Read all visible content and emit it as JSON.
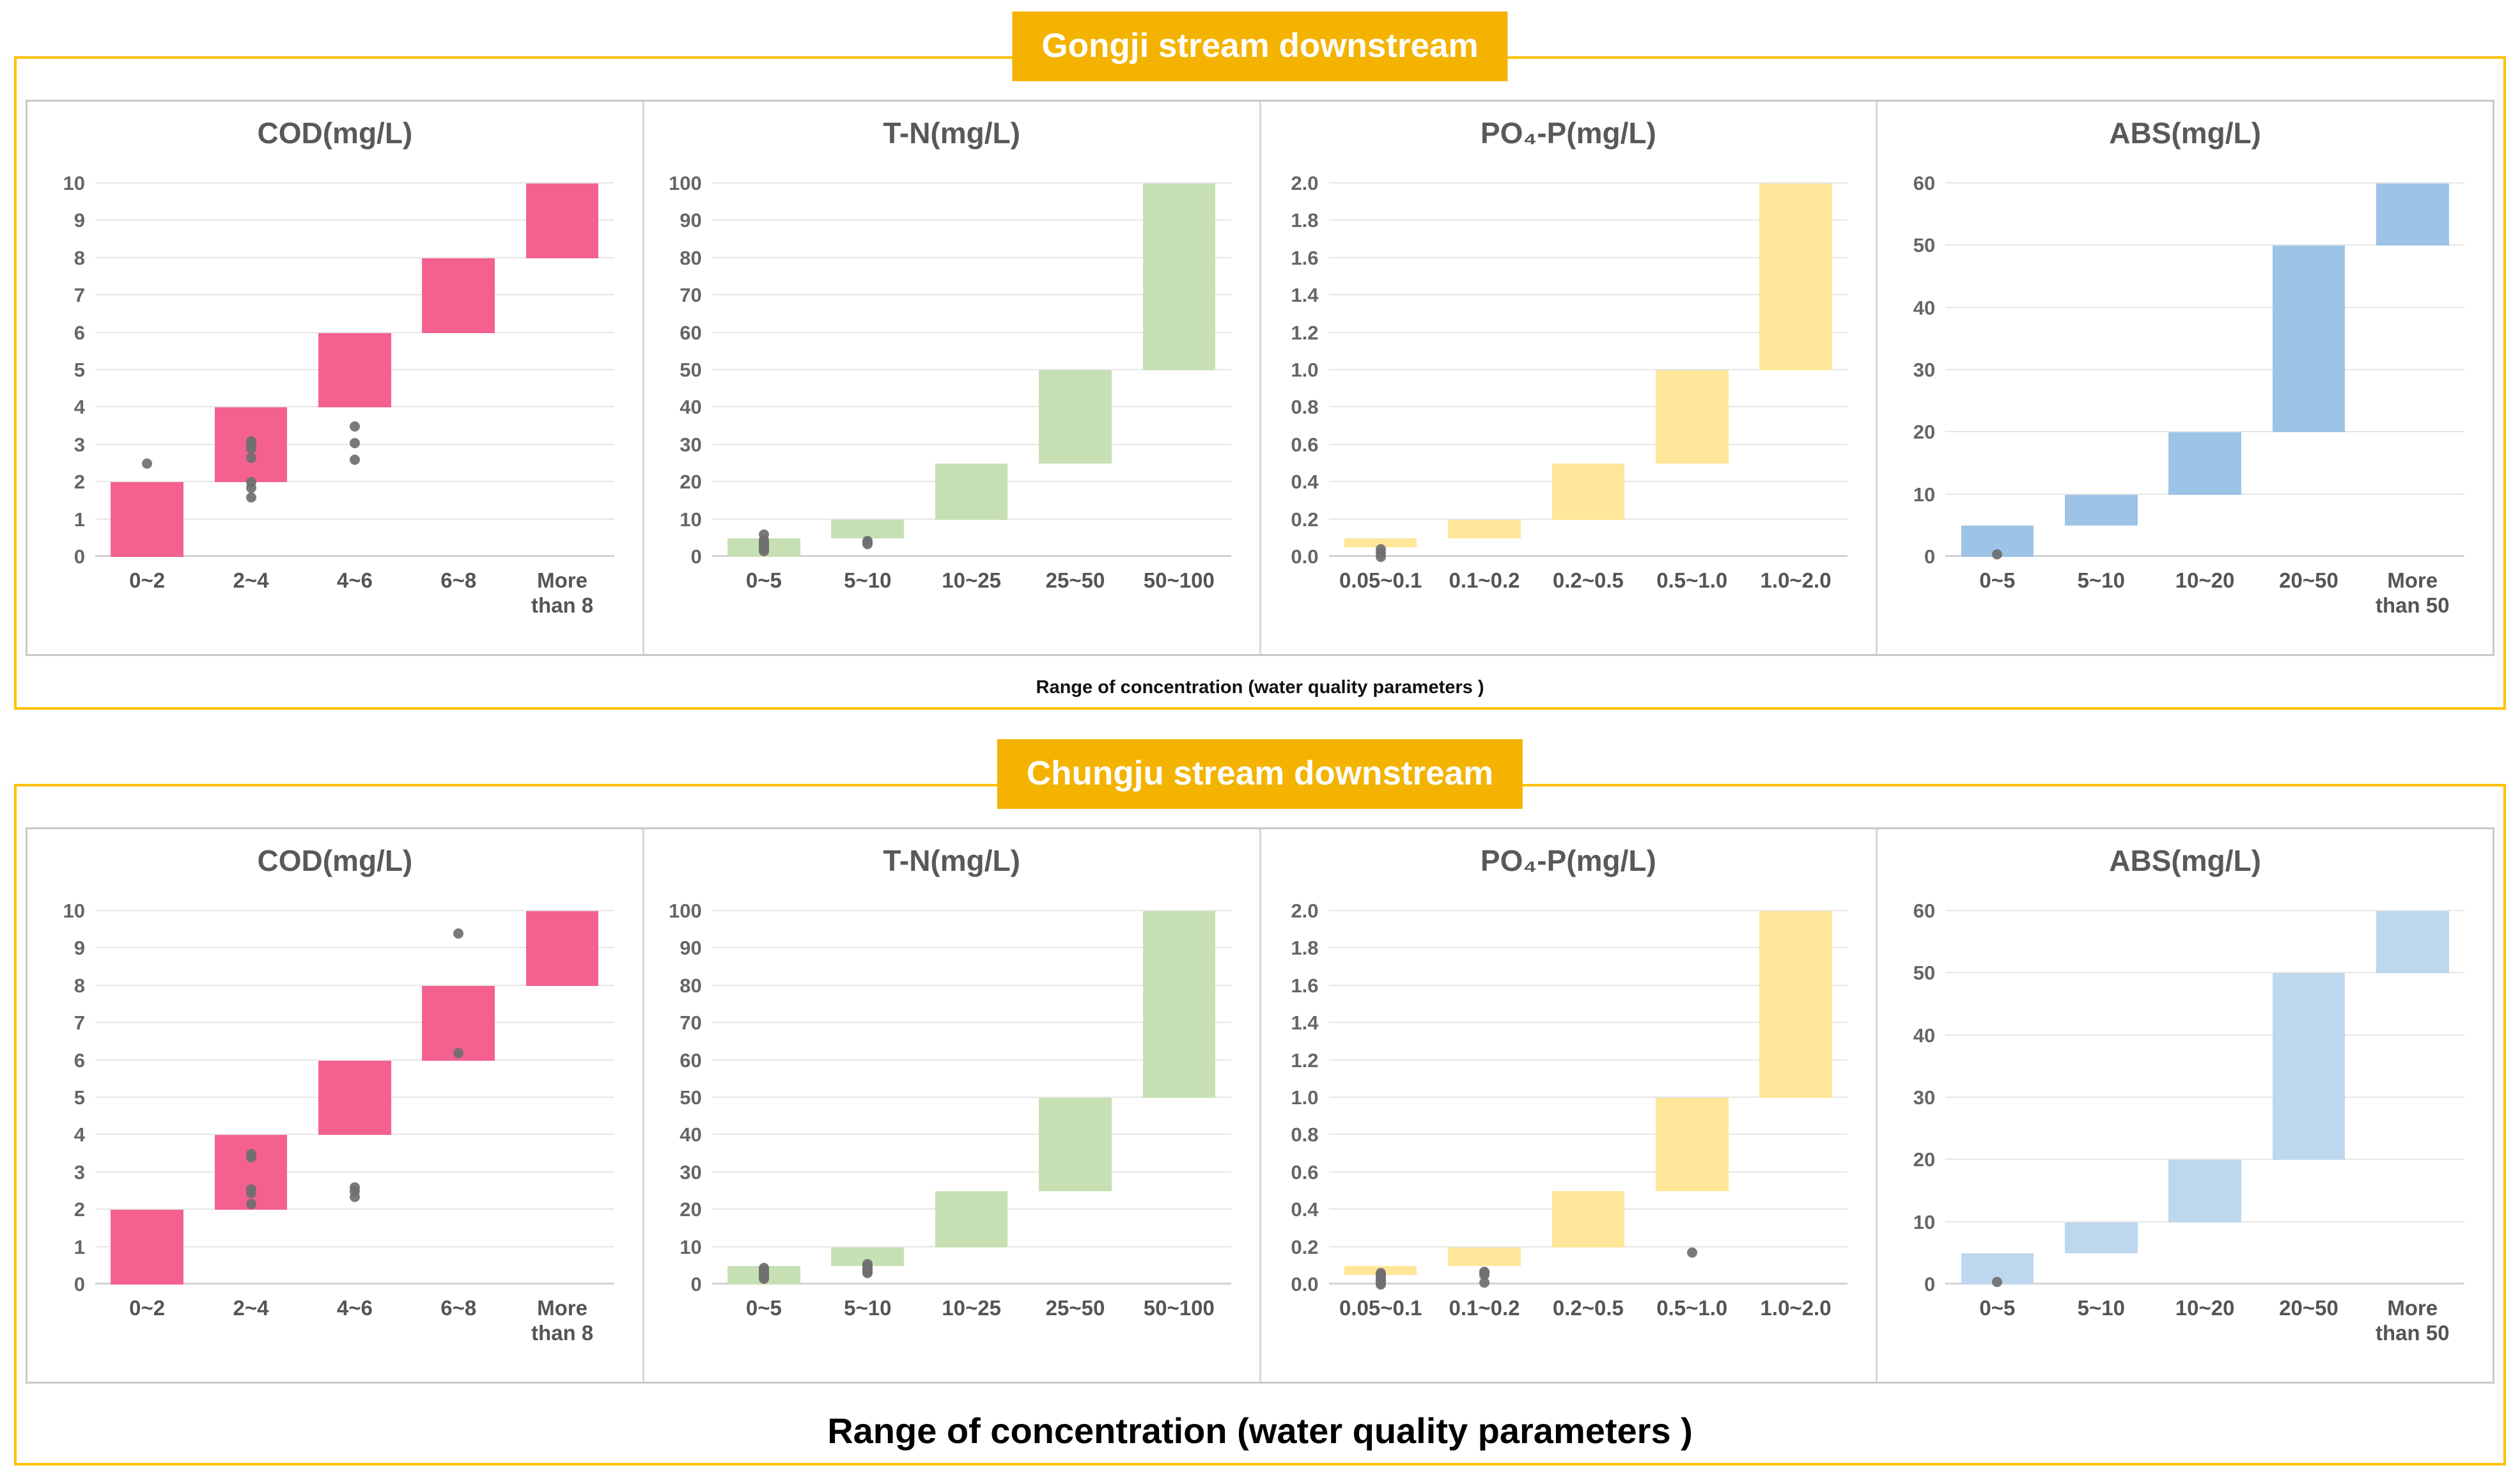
{
  "colors": {
    "badge_bg": "#F3B300",
    "panel_border": "#FFC000",
    "inner_border": "#C8C8C8",
    "gridline": "#E6E6E6",
    "dot": "#6F6F6F",
    "cod_pink": "#F4618F",
    "tn_green": "#C6E0B4",
    "po4_yellow": "#FFE699",
    "abs_blue_top": "#9DC3E6",
    "abs_blue_bottom": "#BDD7EE"
  },
  "chart_data": [
    {
      "badge": "Gongji stream downstream",
      "xlabel": "Range of concentration (water quality parameters )",
      "charts": [
        {
          "type": "bar",
          "title": "COD(mg/L)",
          "color": "#F4618F",
          "ylim": [
            0,
            10
          ],
          "ytick_step": 1,
          "decimals": 0,
          "categories": [
            "0~2",
            "2~4",
            "4~6",
            "6~8",
            "More\nthan 8"
          ],
          "bars": [
            [
              0,
              2
            ],
            [
              2,
              4
            ],
            [
              4,
              6
            ],
            [
              6,
              8
            ],
            [
              8,
              10
            ]
          ],
          "dots": [
            [
              2.5
            ],
            [
              3.1,
              3.0,
              2.9,
              2.65,
              2.0,
              1.85,
              1.6
            ],
            [
              3.5,
              3.05,
              2.6
            ],
            [],
            []
          ]
        },
        {
          "type": "bar",
          "title": "T-N(mg/L)",
          "color": "#C6E0B4",
          "ylim": [
            0,
            100
          ],
          "ytick_step": 10,
          "decimals": 0,
          "categories": [
            "0~5",
            "5~10",
            "10~25",
            "25~50",
            "50~100"
          ],
          "bars": [
            [
              0,
              5
            ],
            [
              5,
              10
            ],
            [
              10,
              25
            ],
            [
              25,
              50
            ],
            [
              50,
              100
            ]
          ],
          "dots": [
            [
              6,
              4.5,
              4,
              3.5,
              3,
              2.5,
              2,
              1.5
            ],
            [
              4.3,
              3.9,
              3.5
            ],
            [],
            [],
            []
          ]
        },
        {
          "type": "bar",
          "title": "PO₄-P(mg/L)",
          "color": "#FFE699",
          "ylim": [
            0,
            2.0
          ],
          "ytick_step": 0.2,
          "decimals": 1,
          "categories": [
            "0.05~0.1",
            "0.1~0.2",
            "0.2~0.5",
            "0.5~1.0",
            "1.0~2.0"
          ],
          "bars": [
            [
              0.05,
              0.1
            ],
            [
              0.1,
              0.2
            ],
            [
              0.2,
              0.5
            ],
            [
              0.5,
              1.0
            ],
            [
              1.0,
              2.0
            ]
          ],
          "dots": [
            [
              0.04,
              0.02,
              0.0
            ],
            [],
            [],
            [],
            []
          ]
        },
        {
          "type": "bar",
          "title": "ABS(mg/L)",
          "color": "#9DC3E6",
          "ylim": [
            0,
            60
          ],
          "ytick_step": 10,
          "decimals": 0,
          "categories": [
            "0~5",
            "5~10",
            "10~20",
            "20~50",
            "More\nthan 50"
          ],
          "bars": [
            [
              0,
              5
            ],
            [
              5,
              10
            ],
            [
              10,
              20
            ],
            [
              20,
              50
            ],
            [
              50,
              60
            ]
          ],
          "dots": [
            [
              0.4
            ],
            [],
            [],
            [],
            []
          ]
        }
      ]
    },
    {
      "badge": "Chungju stream downstream",
      "xlabel": "Range of concentration (water quality parameters )",
      "charts": [
        {
          "type": "bar",
          "title": "COD(mg/L)",
          "color": "#F4618F",
          "ylim": [
            0,
            10
          ],
          "ytick_step": 1,
          "decimals": 0,
          "categories": [
            "0~2",
            "2~4",
            "4~6",
            "6~8",
            "More\nthan 8"
          ],
          "bars": [
            [
              0,
              2
            ],
            [
              2,
              4
            ],
            [
              4,
              6
            ],
            [
              6,
              8
            ],
            [
              8,
              10
            ]
          ],
          "dots": [
            [],
            [
              3.5,
              3.4,
              2.55,
              2.45,
              2.15
            ],
            [
              2.6,
              2.5,
              2.35
            ],
            [
              9.4,
              6.2
            ],
            []
          ]
        },
        {
          "type": "bar",
          "title": "T-N(mg/L)",
          "color": "#C6E0B4",
          "ylim": [
            0,
            100
          ],
          "ytick_step": 10,
          "decimals": 0,
          "categories": [
            "0~5",
            "5~10",
            "10~25",
            "25~50",
            "50~100"
          ],
          "bars": [
            [
              0,
              5
            ],
            [
              5,
              10
            ],
            [
              10,
              25
            ],
            [
              25,
              50
            ],
            [
              50,
              100
            ]
          ],
          "dots": [
            [
              4.5,
              4,
              3.5,
              3,
              2.5,
              2,
              1.5
            ],
            [
              5.5,
              5,
              4.5,
              4,
              3.5,
              3
            ],
            [],
            [],
            []
          ]
        },
        {
          "type": "bar",
          "title": "PO₄-P(mg/L)",
          "color": "#FFE699",
          "ylim": [
            0,
            2.0
          ],
          "ytick_step": 0.2,
          "decimals": 1,
          "categories": [
            "0.05~0.1",
            "0.1~0.2",
            "0.2~0.5",
            "0.5~1.0",
            "1.0~2.0"
          ],
          "bars": [
            [
              0.05,
              0.1
            ],
            [
              0.1,
              0.2
            ],
            [
              0.2,
              0.5
            ],
            [
              0.5,
              1.0
            ],
            [
              1.0,
              2.0
            ]
          ],
          "dots": [
            [
              0.06,
              0.05,
              0.04,
              0.03,
              0.02,
              0.01,
              0.0
            ],
            [
              0.07,
              0.06,
              0.05,
              0.01
            ],
            [],
            [
              0.17
            ],
            []
          ]
        },
        {
          "type": "bar",
          "title": "ABS(mg/L)",
          "color": "#BDD7EE",
          "ylim": [
            0,
            60
          ],
          "ytick_step": 10,
          "decimals": 0,
          "categories": [
            "0~5",
            "5~10",
            "10~20",
            "20~50",
            "More\nthan 50"
          ],
          "bars": [
            [
              0,
              5
            ],
            [
              5,
              10
            ],
            [
              10,
              20
            ],
            [
              20,
              50
            ],
            [
              50,
              60
            ]
          ],
          "dots": [
            [
              0.4
            ],
            [],
            [],
            [],
            []
          ]
        }
      ]
    }
  ]
}
